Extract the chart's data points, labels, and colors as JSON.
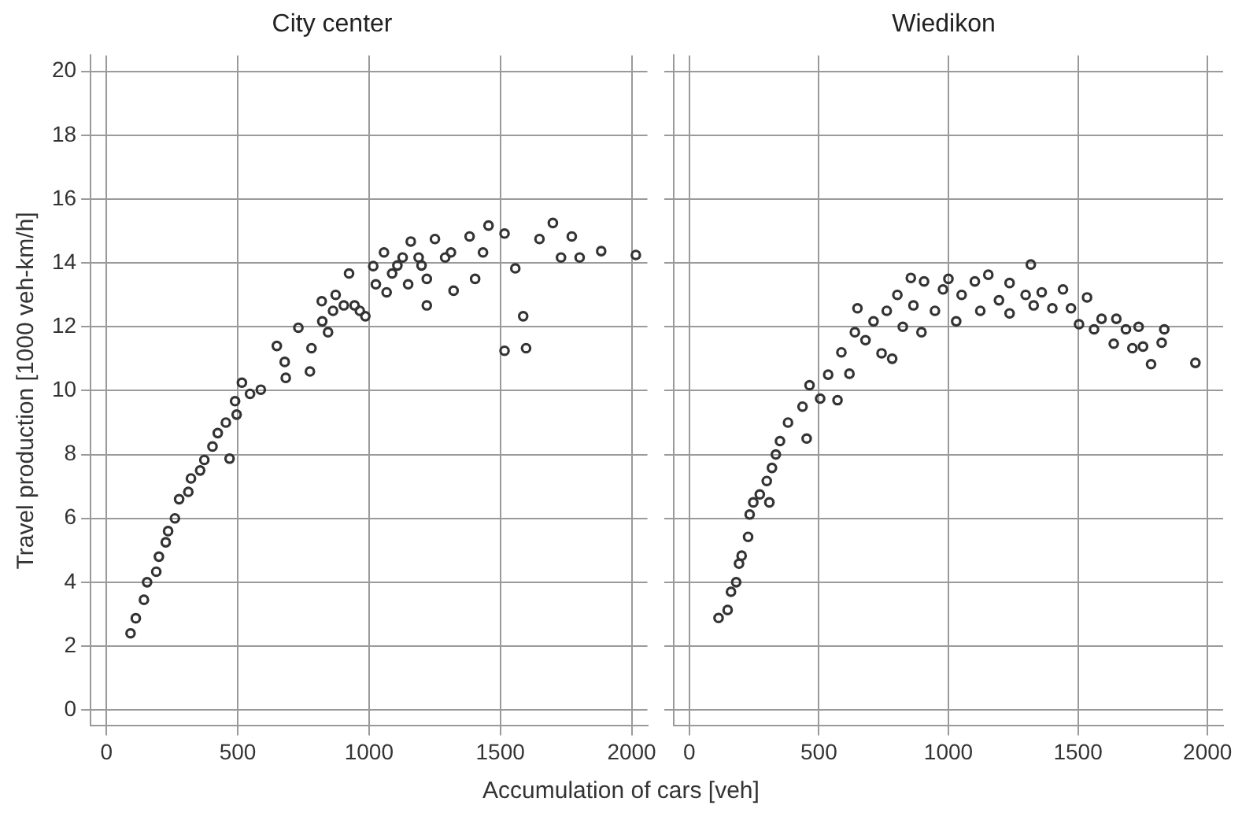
{
  "chart_data": [
    {
      "type": "scatter",
      "title": "City center",
      "xlabel": "Accumulation of cars [veh]",
      "ylabel": "Travel production [1000 veh-km/h]",
      "xlim": [
        -60,
        2060
      ],
      "xticks": [
        0,
        500,
        1000,
        1500,
        2000
      ],
      "ylim": [
        -0.5,
        20.5
      ],
      "yticks": [
        0,
        2,
        4,
        6,
        8,
        10,
        12,
        14,
        16,
        18,
        20
      ],
      "grid": true,
      "marker": "circle",
      "series": [
        {
          "color": "#333333",
          "x": [
            92,
            112,
            143,
            155,
            190,
            200,
            226,
            235,
            261,
            277,
            312,
            322,
            357,
            373,
            404,
            424,
            455,
            496,
            469,
            490,
            516,
            547,
            588,
            649,
            679,
            683,
            731,
            775,
            781,
            820,
            844,
            873,
            924,
            945,
            986,
            1016,
            1057,
            1088,
            1128,
            1159,
            1189,
            1220,
            1220,
            1251,
            1312,
            1322,
            1383,
            1404,
            1455,
            1516,
            1516,
            1557,
            1598,
            1587,
            1649,
            1700,
            1731,
            1772,
            1802,
            1884,
            2016,
            1108,
            1026,
            1149,
            1067,
            904,
            965,
            863,
            822,
            1200,
            1290,
            1434
          ],
          "values": [
            2.4,
            2.87,
            3.45,
            4.0,
            4.33,
            4.8,
            5.25,
            5.6,
            6.0,
            6.6,
            6.83,
            7.25,
            7.5,
            7.83,
            8.25,
            8.67,
            9.0,
            9.25,
            7.87,
            9.67,
            10.25,
            9.9,
            10.03,
            11.4,
            10.9,
            10.4,
            11.97,
            10.6,
            11.33,
            12.8,
            11.83,
            13.0,
            13.67,
            12.67,
            12.33,
            13.9,
            14.33,
            13.67,
            14.17,
            14.67,
            14.17,
            13.5,
            12.67,
            14.75,
            14.33,
            13.13,
            14.83,
            13.5,
            15.17,
            14.92,
            11.25,
            13.83,
            11.33,
            12.33,
            14.75,
            15.25,
            14.17,
            14.83,
            14.17,
            14.37,
            14.25,
            13.92,
            13.33,
            13.33,
            13.08,
            12.67,
            12.5,
            12.5,
            12.17,
            13.92,
            14.17,
            14.33
          ]
        }
      ]
    },
    {
      "type": "scatter",
      "title": "Wiedikon",
      "xlim": [
        -60,
        2060
      ],
      "xticks": [
        0,
        500,
        1000,
        1500,
        2000
      ],
      "ylim": [
        -0.5,
        20.5
      ],
      "yticks": [
        0,
        2,
        4,
        6,
        8,
        10,
        12,
        14,
        16,
        18,
        20
      ],
      "grid": true,
      "marker": "circle",
      "tick_labels": "x",
      "series": [
        {
          "color": "#333333",
          "x": [
            113,
            148,
            161,
            181,
            192,
            202,
            227,
            233,
            247,
            272,
            309,
            299,
            319,
            334,
            350,
            381,
            453,
            437,
            464,
            505,
            572,
            536,
            587,
            618,
            639,
            649,
            680,
            711,
            742,
            762,
            783,
            803,
            824,
            855,
            865,
            896,
            906,
            948,
            979,
            1000,
            1030,
            1051,
            1102,
            1123,
            1154,
            1195,
            1236,
            1236,
            1298,
            1318,
            1329,
            1360,
            1401,
            1442,
            1473,
            1504,
            1535,
            1562,
            1591,
            1638,
            1648,
            1685,
            1710,
            1734,
            1751,
            1782,
            1823,
            1833,
            1953
          ],
          "values": [
            2.88,
            3.13,
            3.7,
            4.0,
            4.58,
            4.83,
            5.42,
            6.12,
            6.5,
            6.75,
            6.5,
            7.17,
            7.58,
            8.0,
            8.42,
            9.0,
            8.5,
            9.5,
            10.17,
            9.75,
            9.7,
            10.5,
            11.2,
            10.53,
            11.83,
            12.58,
            11.58,
            12.17,
            11.17,
            12.5,
            11.0,
            13.0,
            12.0,
            13.53,
            12.67,
            11.83,
            13.42,
            12.5,
            13.17,
            13.5,
            12.17,
            13.0,
            13.42,
            12.5,
            13.63,
            12.83,
            13.37,
            12.42,
            13.0,
            13.95,
            12.67,
            13.08,
            12.58,
            13.17,
            12.58,
            12.08,
            12.92,
            11.92,
            12.25,
            11.47,
            12.25,
            11.92,
            11.33,
            12.0,
            11.38,
            10.83,
            11.5,
            11.92,
            10.87
          ]
        }
      ]
    }
  ]
}
